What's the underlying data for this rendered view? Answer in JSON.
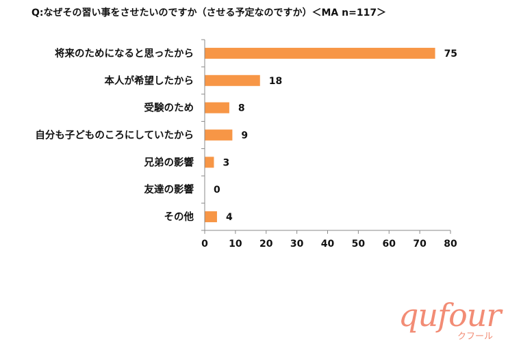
{
  "title": "Q:なぜその習い事をさせたいのですか（させる予定なのですか）＜MA n=117＞",
  "logo": {
    "word": "qufour",
    "sub": "クフール"
  },
  "colors": {
    "bar": "#f79646",
    "axis": "#888888"
  },
  "chart_data": {
    "type": "bar",
    "orientation": "horizontal",
    "title": "Q:なぜその習い事をさせたいのですか（させる予定なのですか）＜MA n=117＞",
    "categories": [
      "将来のためになると思ったから",
      "本人が希望したから",
      "受験のため",
      "自分も子どものころにしていたから",
      "兄弟の影響",
      "友達の影響",
      "その他"
    ],
    "values": [
      75,
      18,
      8,
      9,
      3,
      0,
      4
    ],
    "xlim": [
      0,
      80
    ],
    "xticks": [
      0,
      10,
      20,
      30,
      40,
      50,
      60,
      70,
      80
    ],
    "grid": false,
    "data_labels": true
  }
}
